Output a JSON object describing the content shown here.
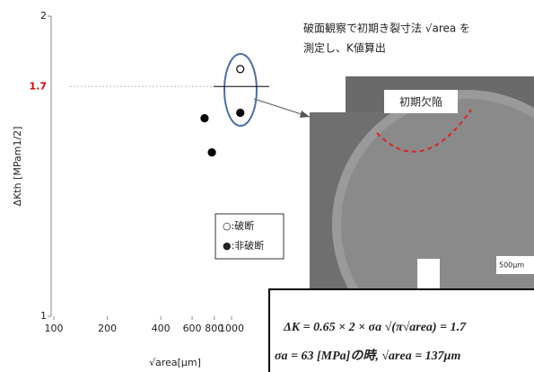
{
  "chart_data": {
    "type": "scatter",
    "x_label": "√area[μm]",
    "y_label": "ΔKth [MPam1/2]",
    "xscale": "log",
    "yscale": "log",
    "xlim": [
      100,
      1630
    ],
    "ylim": [
      1,
      2
    ],
    "xticks": [
      100,
      200,
      400,
      600,
      800,
      1000
    ],
    "yticks": [
      1,
      2
    ],
    "hline": {
      "value": 1.7,
      "color": "#e00000"
    },
    "series": [
      {
        "name": "○:破断",
        "color": "#000000",
        "filled": false,
        "x": [
          1120
        ],
        "values": [
          1.77
        ]
      },
      {
        "name": "●:非破断",
        "color": "#000000",
        "filled": true,
        "x": [
          1120,
          705,
          775
        ],
        "values": [
          1.6,
          1.58,
          1.46
        ]
      }
    ]
  },
  "note": [
    "破面観察で初期き裂寸法 √area を",
    "測定し、K値算出"
  ],
  "photo": {
    "label": "初期欠陥",
    "scale": "500μm"
  },
  "formula": [
    "ΔK = 0.65 × 2 × σa √(π√area) = 1.7",
    "σa = 63 [MPa]の時, √area = 137μm"
  ]
}
